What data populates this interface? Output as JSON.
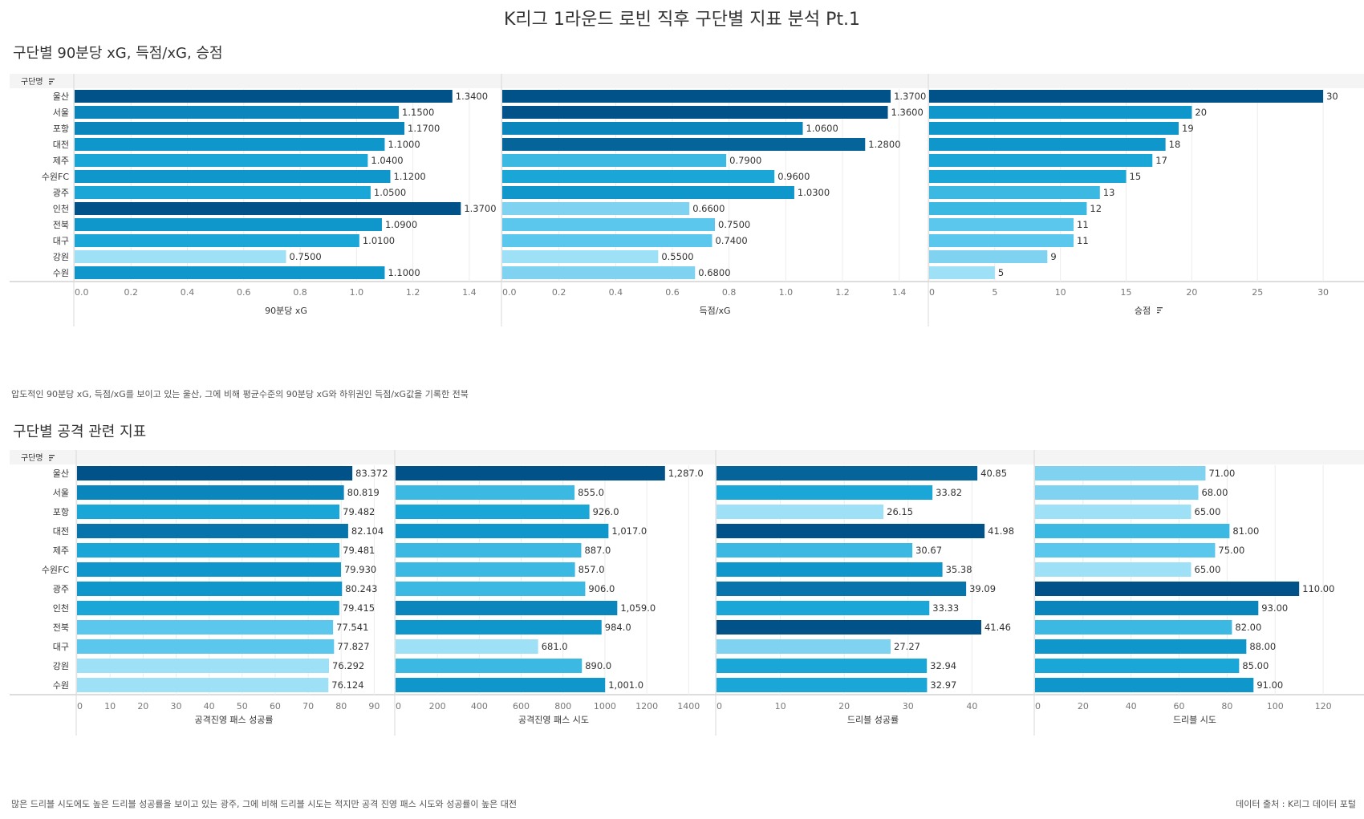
{
  "title": "K리그 1라운드 로빈 직후 구단별 지표 분석 Pt.1",
  "section1": {
    "title": "구단별 90분당 xG, 득점/xG, 승점",
    "note": "압도적인 90분당 xG, 득점/xG를 보이고 있는 울산, 그에 비해 평균수준의 90분당 xG와 하위권인 득점/xG값을 기록한 전북"
  },
  "section2": {
    "title": "구단별 공격 관련 지표",
    "note": "많은 드리블 시도에도 높은 드리블 성공률을 보이고 있는 광주, 그에 비해 드리블 시도는 적지만 공격 진영 패스 시도와 성공률이 높은 대전"
  },
  "source": "데이터 출처 : K리그 데이터 포털",
  "row_header": "구단명",
  "chart_data": [
    {
      "id": "xg90",
      "type": "bar",
      "orientation": "horizontal",
      "categories": [
        "울산",
        "서울",
        "포항",
        "대전",
        "제주",
        "수원FC",
        "광주",
        "인천",
        "전북",
        "대구",
        "강원",
        "수원"
      ],
      "values": [
        1.34,
        1.15,
        1.17,
        1.1,
        1.04,
        1.12,
        1.05,
        1.37,
        1.09,
        1.01,
        0.75,
        1.1
      ],
      "labels": [
        "1.3400",
        "1.1500",
        "1.1700",
        "1.1000",
        "1.0400",
        "1.1200",
        "1.0500",
        "1.3700",
        "1.0900",
        "1.0100",
        "0.7500",
        "1.1000"
      ],
      "xlabel": "90분당 xG",
      "xlim": [
        0,
        1.5
      ],
      "ticks": [
        0,
        0.2,
        0.4,
        0.6,
        0.8,
        1.0,
        1.2,
        1.4
      ],
      "tick_labels": [
        "0.0",
        "0.2",
        "0.4",
        "0.6",
        "0.8",
        "1.0",
        "1.2",
        "1.4"
      ],
      "sorted": false
    },
    {
      "id": "goals_xg",
      "type": "bar",
      "orientation": "horizontal",
      "categories": [
        "울산",
        "서울",
        "포항",
        "대전",
        "제주",
        "수원FC",
        "광주",
        "인천",
        "전북",
        "대구",
        "강원",
        "수원"
      ],
      "values": [
        1.37,
        1.36,
        1.06,
        1.28,
        0.79,
        0.96,
        1.03,
        0.66,
        0.75,
        0.74,
        0.55,
        0.68
      ],
      "labels": [
        "1.3700",
        "1.3600",
        "1.0600",
        "1.2800",
        "0.7900",
        "0.9600",
        "1.0300",
        "0.6600",
        "0.7500",
        "0.7400",
        "0.5500",
        "0.6800"
      ],
      "xlabel": "득점/xG",
      "xlim": [
        0,
        1.5
      ],
      "ticks": [
        0,
        0.2,
        0.4,
        0.6,
        0.8,
        1.0,
        1.2,
        1.4
      ],
      "tick_labels": [
        "0.0",
        "0.2",
        "0.4",
        "0.6",
        "0.8",
        "1.0",
        "1.2",
        "1.4"
      ],
      "sorted": false
    },
    {
      "id": "points",
      "type": "bar",
      "orientation": "horizontal",
      "categories": [
        "울산",
        "서울",
        "포항",
        "대전",
        "제주",
        "수원FC",
        "광주",
        "인천",
        "전북",
        "대구",
        "강원",
        "수원"
      ],
      "values": [
        30,
        20,
        19,
        18,
        17,
        15,
        13,
        12,
        11,
        11,
        9,
        5
      ],
      "labels": [
        "30",
        "20",
        "19",
        "18",
        "17",
        "15",
        "13",
        "12",
        "11",
        "11",
        "9",
        "5"
      ],
      "xlabel": "승점",
      "xlim": [
        0,
        32.5
      ],
      "ticks": [
        0,
        5,
        10,
        15,
        20,
        25,
        30
      ],
      "tick_labels": [
        "0",
        "5",
        "10",
        "15",
        "20",
        "25",
        "30"
      ],
      "sorted": true
    },
    {
      "id": "att_pass_pct",
      "type": "bar",
      "orientation": "horizontal",
      "categories": [
        "울산",
        "서울",
        "포항",
        "대전",
        "제주",
        "수원FC",
        "광주",
        "인천",
        "전북",
        "대구",
        "강원",
        "수원"
      ],
      "values": [
        83.372,
        80.819,
        79.482,
        82.104,
        79.481,
        79.93,
        80.243,
        79.415,
        77.541,
        77.827,
        76.292,
        76.124
      ],
      "labels": [
        "83.372",
        "80.819",
        "79.482",
        "82.104",
        "79.481",
        "79.930",
        "80.243",
        "79.415",
        "77.541",
        "77.827",
        "76.292",
        "76.124"
      ],
      "xlabel": "공격진영 패스 성공률",
      "xlim": [
        0,
        95
      ],
      "ticks": [
        0,
        10,
        20,
        30,
        40,
        50,
        60,
        70,
        80,
        90
      ],
      "tick_labels": [
        "0",
        "10",
        "20",
        "30",
        "40",
        "50",
        "60",
        "70",
        "80",
        "90"
      ],
      "sorted": false
    },
    {
      "id": "att_pass_att",
      "type": "bar",
      "orientation": "horizontal",
      "categories": [
        "울산",
        "서울",
        "포항",
        "대전",
        "제주",
        "수원FC",
        "광주",
        "인천",
        "전북",
        "대구",
        "강원",
        "수원"
      ],
      "values": [
        1287,
        855,
        926,
        1017,
        887,
        857,
        906,
        1059,
        984,
        681,
        890,
        1001
      ],
      "labels": [
        "1,287.0",
        "855.0",
        "926.0",
        "1,017.0",
        "887.0",
        "857.0",
        "906.0",
        "1,059.0",
        "984.0",
        "681.0",
        "890.0",
        "1,001.0"
      ],
      "xlabel": "공격진영 패스 시도",
      "xlim": [
        0,
        1510
      ],
      "ticks": [
        0,
        200,
        400,
        600,
        800,
        1000,
        1200,
        1400
      ],
      "tick_labels": [
        "0",
        "200",
        "400",
        "600",
        "800",
        "1000",
        "1200",
        "1400"
      ],
      "sorted": false
    },
    {
      "id": "dribble_pct",
      "type": "bar",
      "orientation": "horizontal",
      "categories": [
        "울산",
        "서울",
        "포항",
        "대전",
        "제주",
        "수원FC",
        "광주",
        "인천",
        "전북",
        "대구",
        "강원",
        "수원"
      ],
      "values": [
        40.85,
        33.82,
        26.15,
        41.98,
        30.67,
        35.38,
        39.09,
        33.33,
        41.46,
        27.27,
        32.94,
        32.97
      ],
      "labels": [
        "40.85",
        "33.82",
        "26.15",
        "41.98",
        "30.67",
        "35.38",
        "39.09",
        "33.33",
        "41.46",
        "27.27",
        "32.94",
        "32.97"
      ],
      "xlabel": "드리블 성공률",
      "xlim": [
        0,
        49
      ],
      "ticks": [
        0,
        10,
        20,
        30,
        40
      ],
      "tick_labels": [
        "0",
        "10",
        "20",
        "30",
        "40"
      ],
      "sorted": false
    },
    {
      "id": "dribble_att",
      "type": "bar",
      "orientation": "horizontal",
      "categories": [
        "울산",
        "서울",
        "포항",
        "대전",
        "제주",
        "수원FC",
        "광주",
        "인천",
        "전북",
        "대구",
        "강원",
        "수원"
      ],
      "values": [
        71,
        68,
        65,
        81,
        75,
        65,
        110,
        93,
        82,
        88,
        85,
        91
      ],
      "labels": [
        "71.00",
        "68.00",
        "65.00",
        "81.00",
        "75.00",
        "65.00",
        "110.00",
        "93.00",
        "82.00",
        "88.00",
        "85.00",
        "91.00"
      ],
      "xlabel": "드리블 시도",
      "xlim": [
        0,
        133
      ],
      "ticks": [
        0,
        20,
        40,
        60,
        80,
        100,
        120
      ],
      "tick_labels": [
        "0",
        "20",
        "40",
        "60",
        "80",
        "100",
        "120"
      ],
      "sorted": false
    }
  ]
}
